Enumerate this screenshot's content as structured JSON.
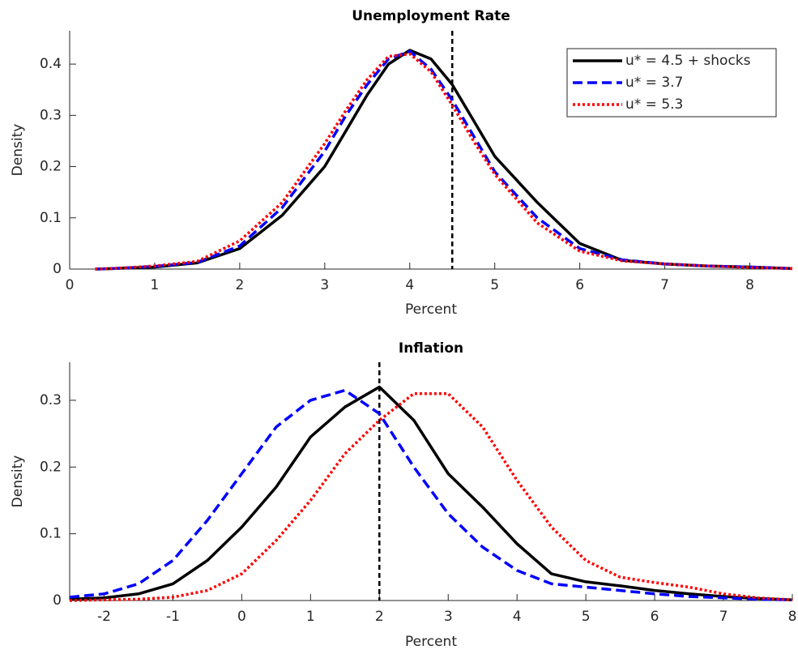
{
  "chart_data": [
    {
      "type": "line",
      "title": "Unemployment Rate",
      "xlabel": "Percent",
      "ylabel": "Density",
      "x": [
        0.3,
        0.5,
        1,
        1.5,
        2,
        2.5,
        3,
        3.25,
        3.5,
        3.75,
        4,
        4.25,
        4.5,
        4.75,
        5,
        5.5,
        6,
        6.5,
        7,
        7.5,
        8,
        8.5
      ],
      "series": [
        {
          "name": "u* = 4.5 + shocks",
          "color": "#000000",
          "dash": "solid",
          "values": [
            0,
            0.001,
            0.004,
            0.012,
            0.04,
            0.105,
            0.2,
            0.27,
            0.34,
            0.4,
            0.427,
            0.41,
            0.36,
            0.29,
            0.22,
            0.13,
            0.05,
            0.017,
            0.01,
            0.006,
            0.004,
            0.001
          ]
        },
        {
          "name": "u* = 3.7",
          "color": "#0000ff",
          "dash": "dashed",
          "values": [
            0,
            0.001,
            0.005,
            0.013,
            0.045,
            0.12,
            0.23,
            0.3,
            0.36,
            0.41,
            0.425,
            0.39,
            0.33,
            0.26,
            0.19,
            0.1,
            0.04,
            0.018,
            0.01,
            0.006,
            0.004,
            0.001
          ]
        },
        {
          "name": "u* = 5.3",
          "color": "#ff0000",
          "dash": "dotted",
          "values": [
            0,
            0.001,
            0.006,
            0.015,
            0.055,
            0.13,
            0.245,
            0.31,
            0.37,
            0.415,
            0.42,
            0.385,
            0.32,
            0.25,
            0.185,
            0.09,
            0.035,
            0.016,
            0.01,
            0.006,
            0.003,
            0.001
          ]
        }
      ],
      "reference_line": 4.5,
      "xlim": [
        0,
        8.5
      ],
      "xticks": [
        0,
        1,
        2,
        3,
        4,
        5,
        6,
        7,
        8
      ],
      "ylim": [
        0,
        0.465
      ],
      "yticks": [
        0,
        0.1,
        0.2,
        0.3,
        0.4
      ],
      "legend": "northeast"
    },
    {
      "type": "line",
      "title": "Inflation",
      "xlabel": "Percent",
      "ylabel": "Density",
      "x": [
        -2.5,
        -2,
        -1.5,
        -1,
        -0.5,
        0,
        0.5,
        1,
        1.5,
        2,
        2.5,
        3,
        3.5,
        4,
        4.5,
        5,
        5.5,
        6,
        6.5,
        7,
        7.5,
        8
      ],
      "series": [
        {
          "name": "u* = 4.5 + shocks",
          "color": "#000000",
          "dash": "solid",
          "values": [
            0.002,
            0.004,
            0.01,
            0.025,
            0.06,
            0.11,
            0.17,
            0.245,
            0.29,
            0.32,
            0.27,
            0.19,
            0.14,
            0.085,
            0.04,
            0.028,
            0.022,
            0.015,
            0.01,
            0.006,
            0.003,
            0.001
          ]
        },
        {
          "name": "u* = 3.7",
          "color": "#0000ff",
          "dash": "dashed",
          "values": [
            0.005,
            0.01,
            0.025,
            0.06,
            0.12,
            0.19,
            0.26,
            0.3,
            0.315,
            0.28,
            0.2,
            0.13,
            0.08,
            0.045,
            0.025,
            0.02,
            0.015,
            0.01,
            0.006,
            0.004,
            0.002,
            0.001
          ]
        },
        {
          "name": "u* = 5.3",
          "color": "#ff0000",
          "dash": "dotted",
          "values": [
            0,
            0.001,
            0.002,
            0.005,
            0.015,
            0.04,
            0.09,
            0.15,
            0.22,
            0.27,
            0.31,
            0.31,
            0.26,
            0.18,
            0.11,
            0.06,
            0.035,
            0.027,
            0.02,
            0.01,
            0.004,
            0.001
          ]
        }
      ],
      "reference_line": 2,
      "xlim": [
        -2.5,
        8
      ],
      "xticks": [
        -2,
        -1,
        0,
        1,
        2,
        3,
        4,
        5,
        6,
        7,
        8
      ],
      "ylim": [
        0,
        0.357
      ],
      "yticks": [
        0,
        0.1,
        0.2,
        0.3
      ]
    }
  ]
}
